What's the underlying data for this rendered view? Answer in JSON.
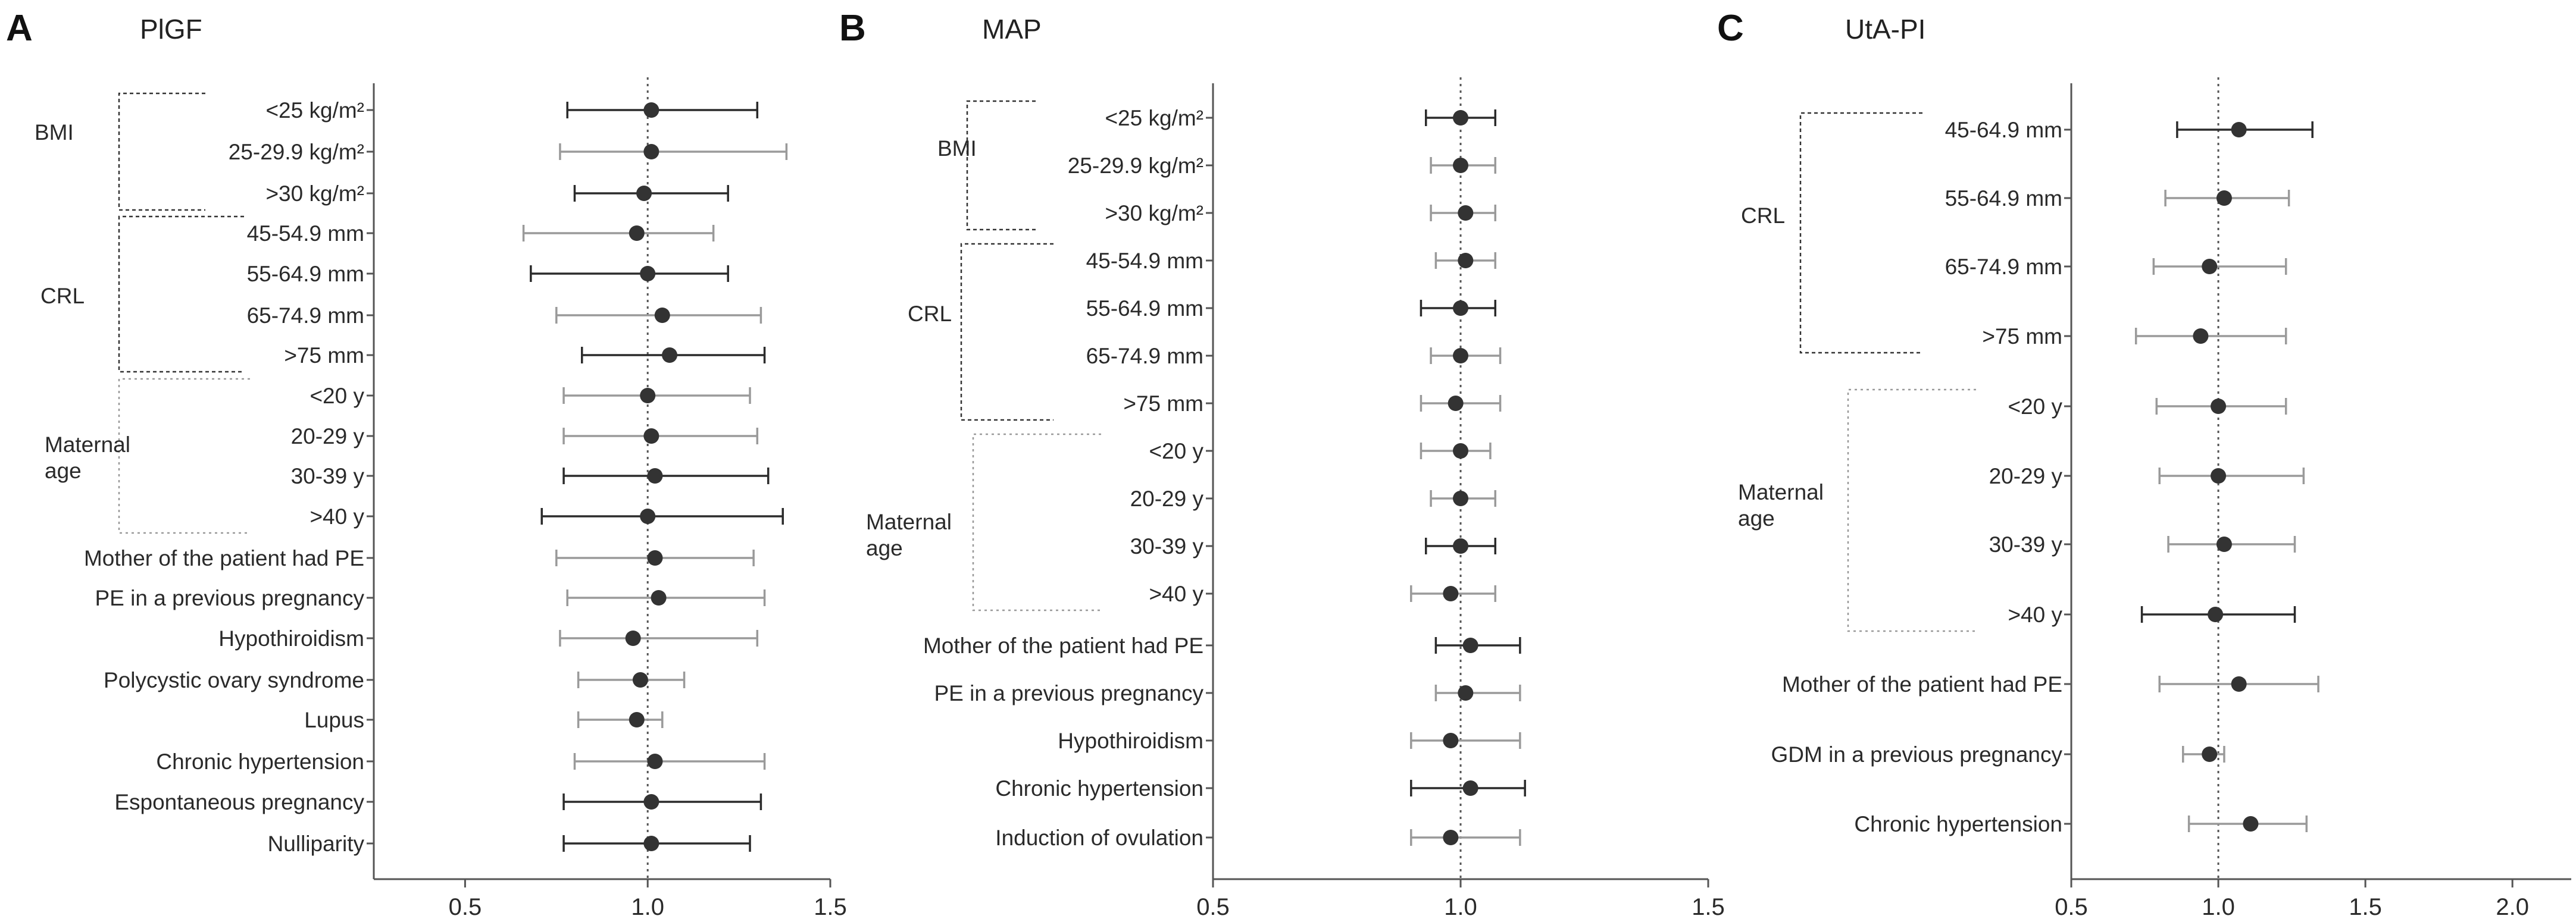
{
  "chart_data": [
    {
      "type": "forest",
      "panel": "A",
      "title": "PlGF",
      "xlim": [
        0.25,
        1.5
      ],
      "reference": 1.0,
      "xticks": [
        "0.5",
        "1.0",
        "1.5"
      ],
      "xtick_values": [
        0.5,
        1.0,
        1.5
      ],
      "rows": [
        {
          "label": "<25 kg/m²",
          "est": 1.01,
          "lo": 0.78,
          "hi": 1.3,
          "group": "BMI",
          "dark": true
        },
        {
          "label": "25-29.9 kg/m²",
          "est": 1.01,
          "lo": 0.76,
          "hi": 1.38,
          "group": "BMI",
          "dark": false
        },
        {
          "label": ">30 kg/m²",
          "est": 0.99,
          "lo": 0.8,
          "hi": 1.22,
          "group": "BMI",
          "dark": true
        },
        {
          "label": "45-54.9 mm",
          "est": 0.97,
          "lo": 0.66,
          "hi": 1.18,
          "group": "CRL",
          "dark": false
        },
        {
          "label": "55-64.9 mm",
          "est": 1.0,
          "lo": 0.68,
          "hi": 1.22,
          "group": "CRL",
          "dark": true
        },
        {
          "label": "65-74.9 mm",
          "est": 1.04,
          "lo": 0.75,
          "hi": 1.31,
          "group": "CRL",
          "dark": false
        },
        {
          "label": ">75 mm",
          "est": 1.06,
          "lo": 0.82,
          "hi": 1.32,
          "group": "CRL",
          "dark": true
        },
        {
          "label": "<20 y",
          "est": 1.0,
          "lo": 0.77,
          "hi": 1.28,
          "group": "Maternal age",
          "dark": false
        },
        {
          "label": "20-29 y",
          "est": 1.01,
          "lo": 0.77,
          "hi": 1.3,
          "group": "Maternal age",
          "dark": false
        },
        {
          "label": "30-39 y",
          "est": 1.02,
          "lo": 0.77,
          "hi": 1.33,
          "group": "Maternal age",
          "dark": true
        },
        {
          "label": ">40 y",
          "est": 1.0,
          "lo": 0.71,
          "hi": 1.37,
          "group": "Maternal age",
          "dark": true
        },
        {
          "label": "Mother of the patient had PE",
          "est": 1.02,
          "lo": 0.75,
          "hi": 1.29,
          "dark": false
        },
        {
          "label": "PE in a previous pregnancy",
          "est": 1.03,
          "lo": 0.78,
          "hi": 1.32,
          "dark": false
        },
        {
          "label": "Hypothiroidism",
          "est": 0.96,
          "lo": 0.76,
          "hi": 1.3,
          "dark": false
        },
        {
          "label": "Polycystic ovary syndrome",
          "est": 0.98,
          "lo": 0.81,
          "hi": 1.1,
          "dark": false
        },
        {
          "label": "Lupus",
          "est": 0.97,
          "lo": 0.81,
          "hi": 1.04,
          "dark": false
        },
        {
          "label": "Chronic hypertension",
          "est": 1.02,
          "lo": 0.8,
          "hi": 1.32,
          "dark": false
        },
        {
          "label": "Espontaneous pregnancy",
          "est": 1.01,
          "lo": 0.77,
          "hi": 1.31,
          "dark": true
        },
        {
          "label": "Nulliparity",
          "est": 1.01,
          "lo": 0.77,
          "hi": 1.28,
          "dark": true
        }
      ]
    },
    {
      "type": "forest",
      "panel": "B",
      "title": "MAP",
      "xlim": [
        0.5,
        1.5
      ],
      "reference": 1.0,
      "xticks": [
        "0.5",
        "1.0",
        "1.5"
      ],
      "xtick_values": [
        0.5,
        1.0,
        1.5
      ],
      "rows": [
        {
          "label": "<25 kg/m²",
          "est": 1.0,
          "lo": 0.93,
          "hi": 1.07,
          "group": "BMI",
          "dark": true
        },
        {
          "label": "25-29.9 kg/m²",
          "est": 1.0,
          "lo": 0.94,
          "hi": 1.07,
          "group": "BMI",
          "dark": false
        },
        {
          "label": ">30 kg/m²",
          "est": 1.01,
          "lo": 0.94,
          "hi": 1.07,
          "group": "BMI",
          "dark": false
        },
        {
          "label": "45-54.9 mm",
          "est": 1.01,
          "lo": 0.95,
          "hi": 1.07,
          "group": "CRL",
          "dark": false
        },
        {
          "label": "55-64.9 mm",
          "est": 1.0,
          "lo": 0.92,
          "hi": 1.07,
          "group": "CRL",
          "dark": true
        },
        {
          "label": "65-74.9 mm",
          "est": 1.0,
          "lo": 0.94,
          "hi": 1.08,
          "group": "CRL",
          "dark": false
        },
        {
          "label": ">75 mm",
          "est": 0.99,
          "lo": 0.92,
          "hi": 1.08,
          "group": "CRL",
          "dark": false
        },
        {
          "label": "<20 y",
          "est": 1.0,
          "lo": 0.92,
          "hi": 1.06,
          "group": "Maternal age",
          "dark": false
        },
        {
          "label": "20-29 y",
          "est": 1.0,
          "lo": 0.94,
          "hi": 1.07,
          "group": "Maternal age",
          "dark": false
        },
        {
          "label": "30-39 y",
          "est": 1.0,
          "lo": 0.93,
          "hi": 1.07,
          "group": "Maternal age",
          "dark": true
        },
        {
          "label": ">40 y",
          "est": 0.98,
          "lo": 0.9,
          "hi": 1.07,
          "group": "Maternal age",
          "dark": false
        },
        {
          "label": "Mother of the patient had PE",
          "est": 1.02,
          "lo": 0.95,
          "hi": 1.12,
          "dark": true
        },
        {
          "label": "PE in a previous pregnancy",
          "est": 1.01,
          "lo": 0.95,
          "hi": 1.12,
          "dark": false
        },
        {
          "label": "Hypothiroidism",
          "est": 0.98,
          "lo": 0.9,
          "hi": 1.12,
          "dark": false
        },
        {
          "label": "Chronic hypertension",
          "est": 1.02,
          "lo": 0.9,
          "hi": 1.13,
          "dark": true
        },
        {
          "label": "Induction of ovulation",
          "est": 0.98,
          "lo": 0.9,
          "hi": 1.12,
          "dark": false
        }
      ]
    },
    {
      "type": "forest",
      "panel": "C",
      "title": "UtA-PI",
      "xlim": [
        0.5,
        2.2
      ],
      "reference": 1.0,
      "xticks": [
        "0.5",
        "1.0",
        "1.5",
        "2.0"
      ],
      "xtick_values": [
        0.5,
        1.0,
        1.5,
        2.0
      ],
      "rows": [
        {
          "label": "45-64.9 mm",
          "est": 1.07,
          "lo": 0.86,
          "hi": 1.32,
          "group": "CRL",
          "dark": true
        },
        {
          "label": "55-64.9 mm",
          "est": 1.02,
          "lo": 0.82,
          "hi": 1.24,
          "group": "CRL",
          "dark": false
        },
        {
          "label": "65-74.9 mm",
          "est": 0.97,
          "lo": 0.78,
          "hi": 1.23,
          "group": "CRL",
          "dark": false
        },
        {
          "label": ">75 mm",
          "est": 0.94,
          "lo": 0.72,
          "hi": 1.23,
          "group": "CRL",
          "dark": false
        },
        {
          "label": "<20 y",
          "est": 1.0,
          "lo": 0.79,
          "hi": 1.23,
          "group": "Maternal age",
          "dark": false
        },
        {
          "label": "20-29 y",
          "est": 1.0,
          "lo": 0.8,
          "hi": 1.29,
          "group": "Maternal age",
          "dark": false
        },
        {
          "label": "30-39 y",
          "est": 1.02,
          "lo": 0.83,
          "hi": 1.26,
          "group": "Maternal age",
          "dark": false
        },
        {
          "label": ">40 y",
          "est": 0.99,
          "lo": 0.74,
          "hi": 1.26,
          "group": "Maternal age",
          "dark": true
        },
        {
          "label": "Mother of the patient had PE",
          "est": 1.07,
          "lo": 0.8,
          "hi": 1.34,
          "dark": false
        },
        {
          "label": "GDM in a previous pregnancy",
          "est": 0.97,
          "lo": 0.88,
          "hi": 1.02,
          "dark": false
        },
        {
          "label": "Chronic hypertension",
          "est": 1.11,
          "lo": 0.9,
          "hi": 1.3,
          "dark": false
        }
      ]
    }
  ],
  "colors": {
    "dark": "#2b2b2b",
    "light": "#9a9a9a",
    "marker": "#333333",
    "axis": "#555555",
    "text": "#2a2a2a"
  }
}
